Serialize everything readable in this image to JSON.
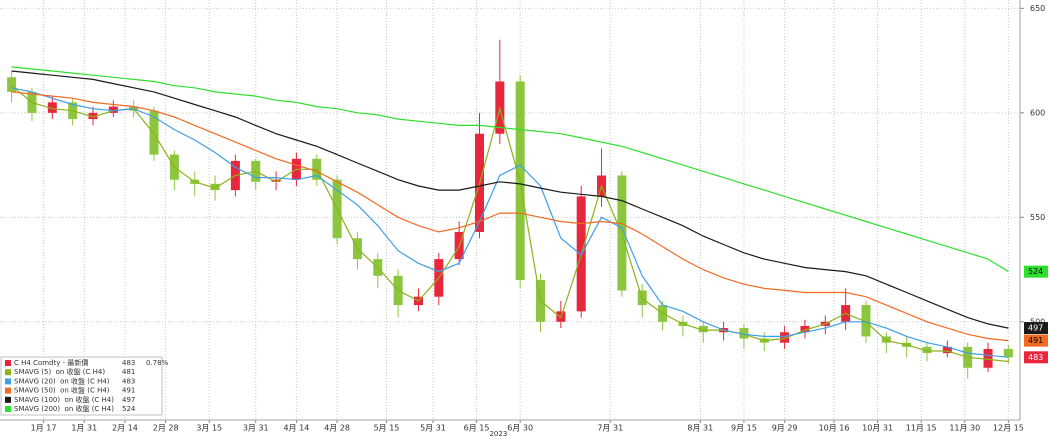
{
  "chart_data": {
    "type": "candlestick",
    "name": "C H4 Comdty - 最新價",
    "last": 483,
    "change": "0.78%",
    "up_color": "#e8263c",
    "down_color": "#8cc63f",
    "x": [
      "2023-01-06",
      "2023-01-13",
      "2023-01-20",
      "2023-01-27",
      "2023-02-03",
      "2023-02-10",
      "2023-02-17",
      "2023-02-24",
      "2023-03-03",
      "2023-03-10",
      "2023-03-17",
      "2023-03-24",
      "2023-03-31",
      "2023-04-07",
      "2023-04-14",
      "2023-04-21",
      "2023-04-28",
      "2023-05-05",
      "2023-05-12",
      "2023-05-19",
      "2023-05-26",
      "2023-06-02",
      "2023-06-09",
      "2023-06-16",
      "2023-06-23",
      "2023-06-30",
      "2023-07-07",
      "2023-07-14",
      "2023-07-21",
      "2023-07-28",
      "2023-08-04",
      "2023-08-11",
      "2023-08-18",
      "2023-08-25",
      "2023-09-01",
      "2023-09-08",
      "2023-09-15",
      "2023-09-22",
      "2023-09-29",
      "2023-10-06",
      "2023-10-13",
      "2023-10-20",
      "2023-10-27",
      "2023-11-03",
      "2023-11-10",
      "2023-11-17",
      "2023-11-24",
      "2023-12-01",
      "2023-12-08",
      "2023-12-15"
    ],
    "open": [
      617,
      610,
      600,
      605,
      597,
      600,
      603,
      601,
      580,
      568,
      566,
      563,
      577,
      567,
      568,
      578,
      568,
      540,
      530,
      522,
      508,
      512,
      530,
      543,
      590,
      615,
      520,
      500,
      505,
      560,
      570,
      515,
      508,
      500,
      498,
      495,
      497,
      492,
      490,
      495,
      498,
      500,
      508,
      493,
      490,
      488,
      485,
      488,
      478,
      487
    ],
    "high": [
      620,
      612,
      608,
      607,
      603,
      606,
      606,
      603,
      582,
      572,
      570,
      580,
      578,
      572,
      581,
      580,
      570,
      543,
      533,
      525,
      516,
      533,
      548,
      600,
      635,
      618,
      523,
      510,
      565,
      583,
      572,
      518,
      510,
      503,
      500,
      500,
      499,
      495,
      498,
      501,
      503,
      516,
      510,
      495,
      493,
      490,
      491,
      490,
      490,
      489
    ],
    "low": [
      605,
      596,
      597,
      594,
      594,
      598,
      598,
      577,
      563,
      560,
      558,
      560,
      563,
      563,
      565,
      565,
      537,
      525,
      516,
      502,
      505,
      508,
      527,
      540,
      585,
      516,
      495,
      497,
      502,
      555,
      512,
      502,
      496,
      493,
      490,
      491,
      487,
      486,
      487,
      492,
      494,
      496,
      490,
      485,
      483,
      481,
      483,
      473,
      476,
      480
    ],
    "close": [
      610,
      600,
      605,
      597,
      600,
      603,
      601,
      580,
      568,
      566,
      563,
      577,
      567,
      568,
      578,
      568,
      540,
      530,
      522,
      508,
      512,
      530,
      543,
      590,
      615,
      520,
      500,
      505,
      560,
      570,
      515,
      508,
      500,
      498,
      495,
      497,
      492,
      490,
      495,
      498,
      500,
      508,
      493,
      490,
      488,
      485,
      488,
      478,
      487,
      483
    ],
    "series": [
      {
        "name": "SMAVG (5)  on 收盤 (C H4)",
        "color": "#8db21a",
        "last": 481,
        "values": [
          613,
          605,
          602,
          601,
          598,
          601,
          602,
          590,
          574,
          567,
          564,
          570,
          572,
          567,
          573,
          573,
          554,
          535,
          526,
          515,
          510,
          521,
          536,
          566,
          602,
          567,
          510,
          502,
          532,
          565,
          542,
          511,
          504,
          499,
          496,
          496,
          494,
          491,
          492,
          496,
          499,
          504,
          500,
          491,
          489,
          486,
          486,
          483,
          482,
          481
        ]
      },
      {
        "name": "SMAVG (20)  on 收盤 (C H4)",
        "color": "#3f9fe6",
        "last": 483,
        "values": [
          612,
          610,
          607,
          604,
          602,
          601,
          602,
          598,
          592,
          587,
          581,
          574,
          569,
          569,
          568,
          570,
          563,
          556,
          546,
          534,
          528,
          524,
          528,
          548,
          570,
          575,
          565,
          540,
          532,
          550,
          545,
          522,
          508,
          505,
          500,
          496,
          494,
          493,
          493,
          495,
          497,
          500,
          500,
          497,
          493,
          490,
          488,
          485,
          484,
          483
        ]
      },
      {
        "name": "SMAVG (50)  on 收盤 (C H4)",
        "color": "#f26a22",
        "last": 491,
        "values": [
          610,
          609,
          608,
          607,
          605,
          604,
          603,
          601,
          598,
          594,
          590,
          586,
          582,
          578,
          575,
          572,
          567,
          562,
          556,
          550,
          546,
          543,
          545,
          548,
          552,
          552,
          550,
          548,
          547,
          548,
          547,
          542,
          536,
          530,
          525,
          521,
          518,
          516,
          515,
          514,
          514,
          514,
          512,
          508,
          504,
          500,
          497,
          494,
          492,
          491
        ]
      },
      {
        "name": "SMAVG (100)  on 收盤 (C H4)",
        "color": "#1a1a1a",
        "last": 497,
        "values": [
          620,
          619,
          618,
          617,
          616,
          614,
          612,
          610,
          607,
          604,
          601,
          598,
          594,
          590,
          587,
          584,
          580,
          576,
          572,
          568,
          565,
          563,
          563,
          565,
          567,
          566,
          564,
          562,
          561,
          560,
          558,
          554,
          550,
          546,
          541,
          537,
          533,
          530,
          528,
          526,
          525,
          524,
          522,
          518,
          514,
          510,
          506,
          502,
          499,
          497
        ]
      },
      {
        "name": "SMAVG (200)  on 收盤 (C H4)",
        "color": "#2ee02e",
        "last": 524,
        "values": [
          622,
          621,
          620,
          619,
          618,
          617,
          616,
          615,
          613,
          612,
          610,
          609,
          608,
          606,
          605,
          603,
          602,
          600,
          599,
          597,
          596,
          595,
          594,
          594,
          593,
          592,
          591,
          590,
          588,
          586,
          584,
          581,
          578,
          575,
          572,
          569,
          566,
          563,
          560,
          557,
          554,
          551,
          548,
          545,
          542,
          539,
          536,
          533,
          530,
          524
        ]
      }
    ],
    "xlim": [
      "2023-01-02",
      "2023-12-19"
    ],
    "xticks": [
      {
        "value": "2023-01-17",
        "label": "1月 17"
      },
      {
        "value": "2023-01-31",
        "label": "1月 31"
      },
      {
        "value": "2023-02-14",
        "label": "2月 14"
      },
      {
        "value": "2023-02-28",
        "label": "2月 28"
      },
      {
        "value": "2023-03-15",
        "label": "3月 15"
      },
      {
        "value": "2023-03-31",
        "label": "3月 31"
      },
      {
        "value": "2023-04-14",
        "label": "4月 14"
      },
      {
        "value": "2023-04-28",
        "label": "4月 28"
      },
      {
        "value": "2023-05-15",
        "label": "5月 15"
      },
      {
        "value": "2023-05-31",
        "label": "5月 31"
      },
      {
        "value": "2023-06-15",
        "label": "6月 15"
      },
      {
        "value": "2023-06-30",
        "label": "6月 30"
      },
      {
        "value": "2023-07-31",
        "label": "7月 31"
      },
      {
        "value": "2023-08-31",
        "label": "8月 31"
      },
      {
        "value": "2023-09-15",
        "label": "9月 15"
      },
      {
        "value": "2023-09-29",
        "label": "9月 29"
      },
      {
        "value": "2023-10-16",
        "label": "10月 16"
      },
      {
        "value": "2023-10-31",
        "label": "10月 31"
      },
      {
        "value": "2023-11-15",
        "label": "11月 15"
      },
      {
        "value": "2023-11-30",
        "label": "11月 30"
      },
      {
        "value": "2023-12-15",
        "label": "12月 15"
      }
    ],
    "xlabel": "2023",
    "ylim": [
      453,
      654
    ],
    "yticks": [
      500,
      550,
      600,
      650
    ],
    "grid": true
  }
}
